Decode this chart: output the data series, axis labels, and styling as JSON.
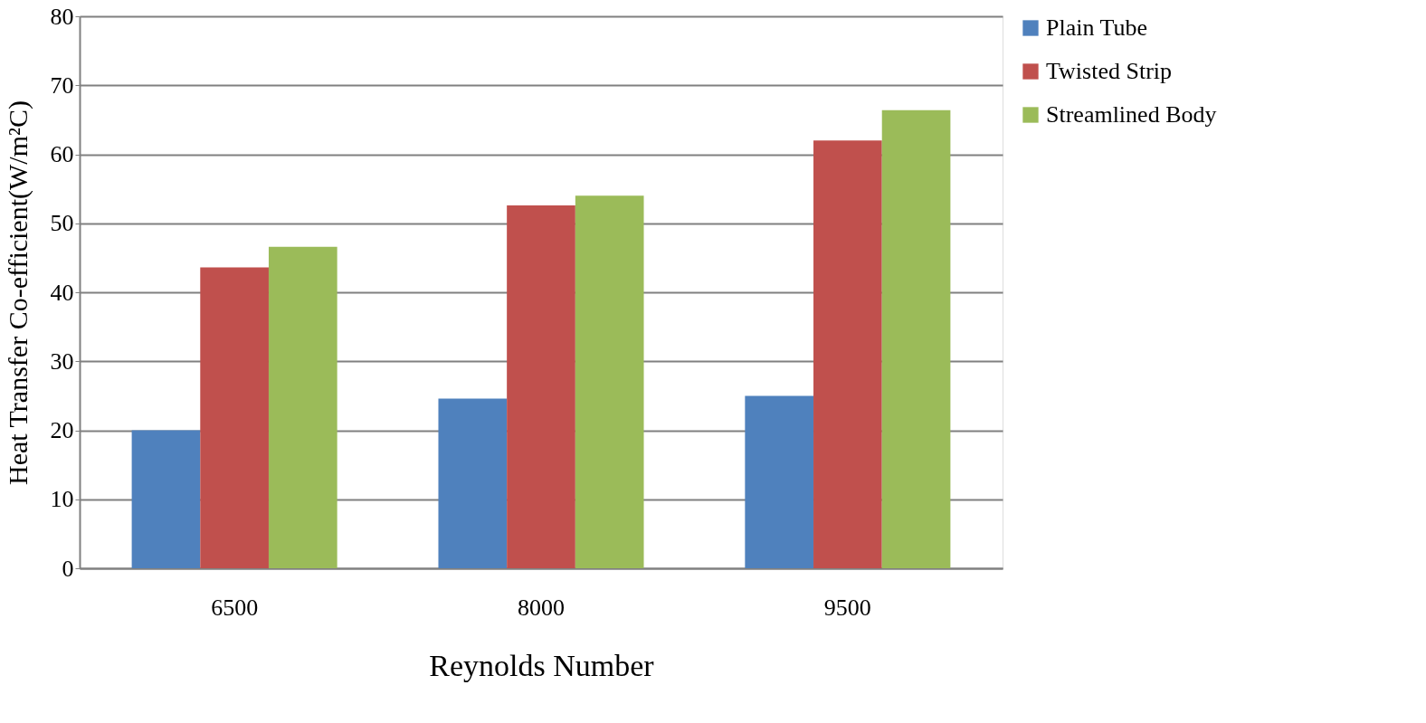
{
  "chart_data": {
    "type": "bar",
    "xlabel": "Reynolds Number",
    "ylabel": "Heat Transfer Co-efficient(W/m²C)",
    "categories": [
      "6500",
      "8000",
      "9500"
    ],
    "series": [
      {
        "name": "Plain Tube",
        "color": "#4f81bd",
        "values": [
          20.0,
          24.6,
          25.0
        ]
      },
      {
        "name": "Twisted Strip",
        "color": "#c0504d",
        "values": [
          43.6,
          52.6,
          62.0
        ]
      },
      {
        "name": "Streamlined  Body",
        "color": "#9bbb59",
        "values": [
          46.6,
          54.0,
          66.4
        ]
      }
    ],
    "ylim": [
      0,
      80
    ],
    "yticks": [
      0,
      10,
      20,
      30,
      40,
      50,
      60,
      70,
      80
    ],
    "grid": "y",
    "legend": "right"
  }
}
